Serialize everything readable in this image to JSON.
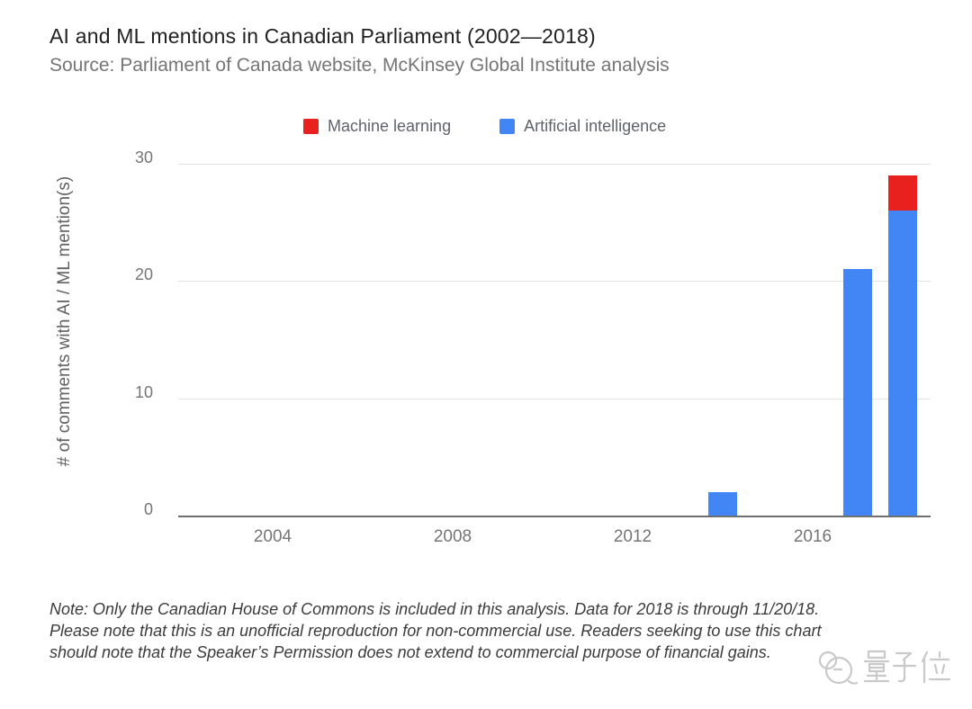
{
  "chart_data": {
    "type": "bar",
    "stacked": true,
    "title": "AI and ML mentions in Canadian Parliament (2002—2018)",
    "subtitle": "Source: Parliament of Canada website, McKinsey Global Institute analysis",
    "ylabel": "# of comments with AI / ML mention(s)",
    "xlabel": "",
    "categories": [
      "2002",
      "2003",
      "2004",
      "2005",
      "2006",
      "2007",
      "2008",
      "2009",
      "2010",
      "2011",
      "2012",
      "2013",
      "2014",
      "2015",
      "2016",
      "2017",
      "2018"
    ],
    "series": [
      {
        "name": "Machine learning",
        "color": "#e8211f",
        "values": [
          0,
          0,
          0,
          0,
          0,
          0,
          0,
          0,
          0,
          0,
          0,
          0,
          0,
          0,
          0,
          0,
          3
        ]
      },
      {
        "name": "Artificial intelligence",
        "color": "#4285f4",
        "values": [
          0,
          0,
          0,
          0,
          0,
          0,
          0,
          0,
          0,
          0,
          0,
          0,
          2,
          0,
          0,
          21,
          26
        ]
      }
    ],
    "ylim": [
      0,
      30
    ],
    "yticks": [
      0,
      10,
      20,
      30
    ],
    "xtick_labels": [
      "2004",
      "2008",
      "2012",
      "2016"
    ],
    "legend_position": "top",
    "grid": "horizontal"
  },
  "note": {
    "lines": [
      "Note: Only the Canadian House of Commons is included in this analysis. Data for 2018 is through 11/20/18.",
      "Please note that this is an unofficial reproduction for non-commercial use. Readers seeking to use this chart",
      "should note that the Speaker’s Permission does not extend to commercial purpose of financial gains."
    ]
  },
  "watermark": {
    "text": "量子位"
  },
  "colors": {
    "machine_learning": "#e8211f",
    "artificial_intelligence": "#4285f4",
    "title_text": "#212121",
    "subtitle_text": "#757575",
    "axis_text": "#757575",
    "legend_text": "#5f6368",
    "note_text": "#3b3b3b",
    "gridline": "#e3e3e3",
    "axis_line": "#6f6f6f",
    "watermark": "#c9c9c9",
    "background": "#ffffff"
  }
}
